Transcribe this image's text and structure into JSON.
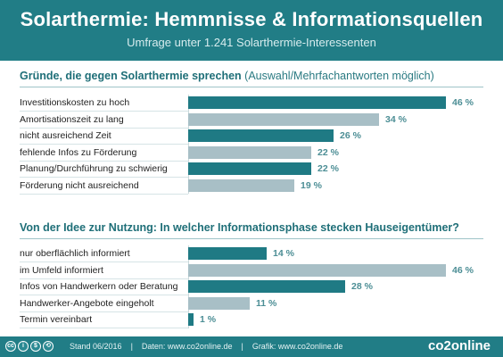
{
  "header": {
    "title": "Solarthermie: Hemmnisse & Informationsquellen",
    "subtitle": "Umfrage unter 1.241 Solarthermie-Interessenten"
  },
  "section1": {
    "title": "Gründe, die gegen Solarthermie sprechen",
    "note": "(Auswahl/Mehrfachantworten möglich)"
  },
  "section2": {
    "title": "Von der Idee zur Nutzung: In welcher Informationsphase stecken Hauseigentümer?"
  },
  "footer": {
    "cc_icons": [
      "cc-icon",
      "by-icon",
      "nc-icon",
      "sa-icon"
    ],
    "stand": "Stand 06/2016",
    "daten": "Daten: www.co2online.de",
    "grafik": "Grafik: www.co2online.de",
    "brand": "co2online"
  },
  "colors": {
    "header": "#217d86",
    "bar_dark": "#1f7a84",
    "bar_light": "#a8bfc6",
    "value_text": "#4c8e95"
  },
  "chart_data": [
    {
      "type": "bar",
      "orientation": "horizontal",
      "title": "Gründe, die gegen Solarthermie sprechen",
      "subtitle": "(Auswahl/Mehrfachantworten möglich)",
      "categories": [
        "Investitionskosten zu hoch",
        "Amortisationszeit zu lang",
        "nicht ausreichend Zeit",
        "fehlende Infos zu Förderung",
        "Planung/Durchführung zu schwierig",
        "Förderung nicht ausreichend"
      ],
      "values": [
        46,
        34,
        26,
        22,
        22,
        19
      ],
      "value_labels": [
        "46 %",
        "34 %",
        "26 %",
        "22 %",
        "22 %",
        "19 %"
      ],
      "shades": [
        "dark",
        "light",
        "dark",
        "light",
        "dark",
        "light"
      ],
      "unit": "%",
      "xlim": [
        0,
        46
      ],
      "grid": false
    },
    {
      "type": "bar",
      "orientation": "horizontal",
      "title": "Von der Idee zur Nutzung: In welcher Informationsphase stecken Hauseigentümer?",
      "categories": [
        "nur oberflächlich informiert",
        "im Umfeld informiert",
        "Infos von Handwerkern oder Beratung",
        "Handwerker-Angebote eingeholt",
        "Termin vereinbart"
      ],
      "values": [
        14,
        46,
        28,
        11,
        1
      ],
      "value_labels": [
        "14 %",
        "46 %",
        "28 %",
        "11 %",
        "1 %"
      ],
      "shades": [
        "dark",
        "light",
        "dark",
        "light",
        "dark"
      ],
      "unit": "%",
      "xlim": [
        0,
        46
      ],
      "grid": false
    }
  ]
}
